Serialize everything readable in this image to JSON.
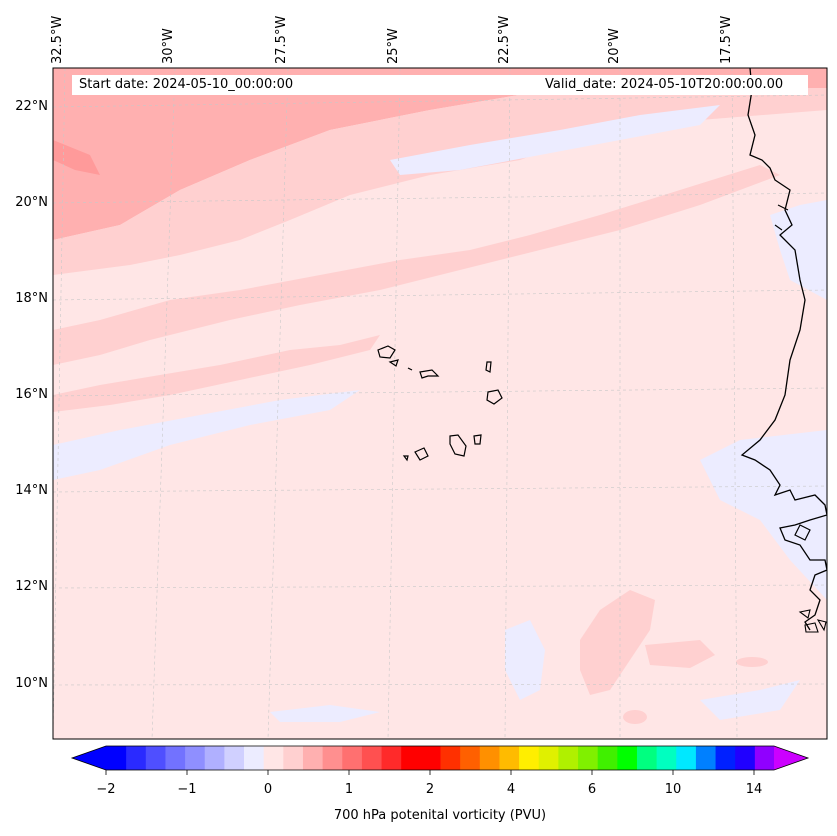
{
  "header": {
    "start_date": "Start date: 2024-05-10_00:00:00",
    "valid_date": "Valid_date: 2024-05-10T20:00:00.00"
  },
  "axes": {
    "lon_labels": [
      "32.5°W",
      "30°W",
      "27.5°W",
      "25°W",
      "22.5°W",
      "20°W",
      "17.5°W"
    ],
    "lat_labels": [
      "22°N",
      "20°N",
      "18°N",
      "16°N",
      "14°N",
      "12°N",
      "10°N"
    ]
  },
  "colorbar": {
    "tick_labels": [
      "−2",
      "−1",
      "0",
      "1",
      "2",
      "4",
      "6",
      "10",
      "14"
    ],
    "label": "700 hPa potenital vorticity (PVU)",
    "colors": [
      "#0000ff",
      "#2a2aff",
      "#4f4fff",
      "#7272ff",
      "#8f8fff",
      "#b0b0ff",
      "#d0d0ff",
      "#ececff",
      "#ffe6e6",
      "#ffd0d0",
      "#ffb0b0",
      "#ff8f8f",
      "#ff7070",
      "#ff5050",
      "#ff2a2a",
      "#ff0000",
      "#ff0000",
      "#ff3000",
      "#ff6000",
      "#ff9000",
      "#ffbb00",
      "#ffee00",
      "#e0f000",
      "#b0f000",
      "#80f000",
      "#40f000",
      "#00ff00",
      "#00ff80",
      "#00ffc0",
      "#00e8ff",
      "#0080ff",
      "#0020ff",
      "#2000ff",
      "#9000ff"
    ],
    "extend_low_color": "#0000ff",
    "extend_high_color": "#cc00ff"
  },
  "map_colors": {
    "background": "#ffe6e6",
    "light_blue": "#ececff",
    "pink": "#ffd0d0",
    "rose": "#ffb0b0",
    "coastline": "#000000"
  }
}
